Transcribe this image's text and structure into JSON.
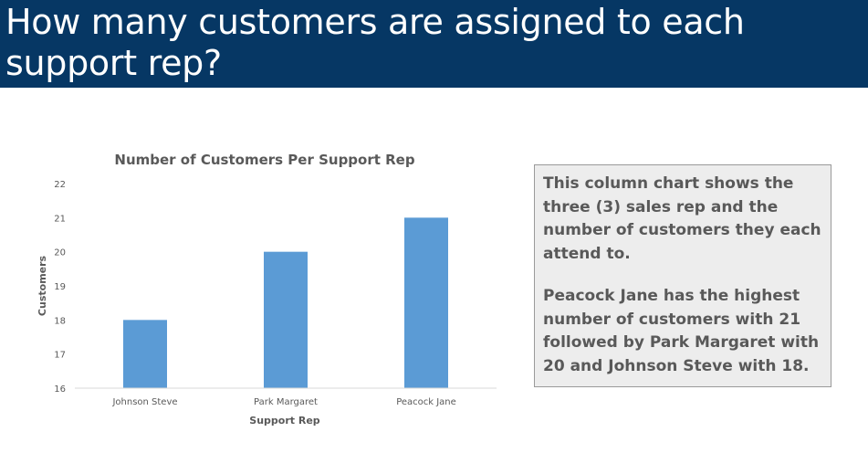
{
  "header": {
    "title": "How many customers are assigned to each support rep?"
  },
  "chart_data": {
    "type": "bar",
    "title": "Number of Customers Per Support Rep",
    "xlabel": "Support Rep",
    "ylabel": "Customers",
    "categories": [
      "Johnson Steve",
      "Park Margaret",
      "Peacock Jane"
    ],
    "values": [
      18,
      20,
      21
    ],
    "ylim": [
      16,
      22
    ],
    "yticks": [
      "16",
      "17",
      "18",
      "19",
      "20",
      "21",
      "22"
    ],
    "grid": false,
    "legend": "none",
    "bar_color": "#5b9bd5",
    "axis_color": "#d9d9d9",
    "text_color": "#595959"
  },
  "note": {
    "paragraph1": "This column chart shows the three (3) sales rep and the number of customers they each attend to.",
    "paragraph2": "Peacock Jane has the highest number of customers with 21 followed by Park Margaret with 20 and Johnson Steve with 18."
  },
  "colors": {
    "header_bg": "#063764",
    "header_text": "#ffffff",
    "note_bg": "#ededed",
    "note_border": "#9a9a9a",
    "note_text": "#595959"
  }
}
